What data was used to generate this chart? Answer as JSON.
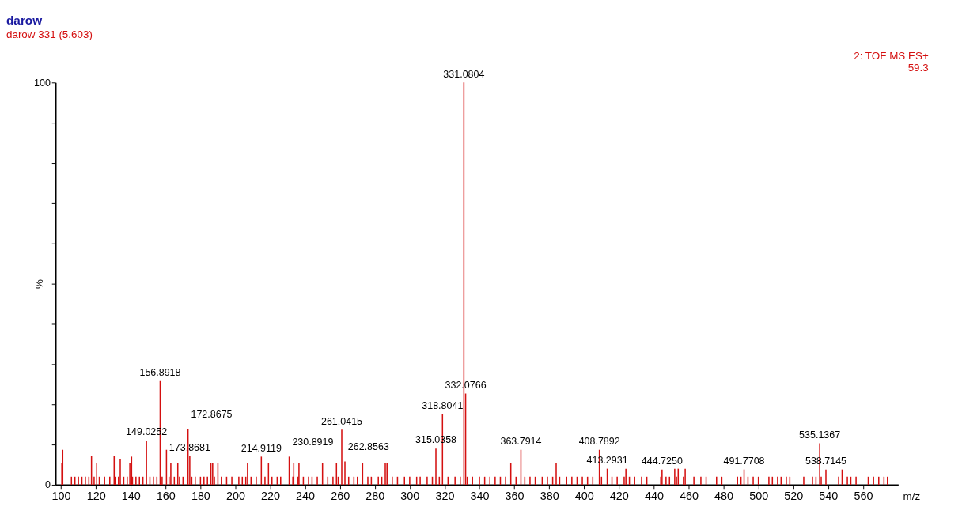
{
  "chart_data": {
    "type": "bar",
    "title": "darow",
    "subtitle": "darow 331 (5.603)",
    "xlabel": "m/z",
    "ylabel": "%",
    "xlim": [
      99,
      578
    ],
    "xticks": [
      100,
      120,
      140,
      160,
      180,
      200,
      220,
      240,
      260,
      280,
      300,
      320,
      340,
      360,
      380,
      400,
      420,
      440,
      460,
      480,
      500,
      520,
      540,
      560
    ],
    "ylim": [
      0,
      100
    ],
    "yticks": [
      0,
      {
        "value": 10,
        "label": null
      },
      {
        "value": 20,
        "label": null
      },
      {
        "value": 30,
        "label": null
      },
      {
        "value": 40,
        "label": null
      },
      {
        "value": 50,
        "label": null
      },
      {
        "value": 60,
        "label": null
      },
      {
        "value": 70,
        "label": null
      },
      {
        "value": 80,
        "label": null
      },
      {
        "value": 90,
        "label": null
      },
      100
    ],
    "grid": false,
    "series": [
      {
        "color": "#d41010",
        "x": [
          100.5,
          101,
          106,
          108,
          110,
          112,
          114,
          116,
          117.5,
          119,
          120.5,
          122,
          125,
          128,
          130.5,
          131,
          133,
          134,
          136,
          138,
          139.5,
          140.5,
          141,
          143,
          145,
          147,
          149.0252,
          151,
          153,
          155,
          156.8918,
          158,
          160.5,
          162,
          163,
          165,
          167,
          168,
          170,
          172.8675,
          173.8681,
          175,
          177,
          180,
          182,
          184,
          186,
          187,
          188,
          190,
          192,
          195,
          198,
          202,
          204,
          206,
          207,
          209,
          212,
          214.9119,
          217,
          219,
          221,
          224,
          226,
          230.8919,
          233,
          233.5,
          236,
          236.5,
          239,
          242,
          244,
          247,
          250,
          253,
          256,
          258,
          259,
          261.0415,
          262.8563,
          265,
          268,
          270,
          273,
          276,
          278,
          282,
          284,
          286,
          287,
          290,
          293,
          297,
          300,
          304,
          306,
          310,
          313,
          315.0358,
          317,
          318.8041,
          322,
          326,
          329,
          331.0804,
          332.0766,
          333,
          336,
          340,
          343,
          346,
          349,
          352,
          355,
          358,
          361,
          363.7914,
          366,
          369,
          372,
          376,
          379,
          382,
          384,
          386,
          390,
          393,
          396,
          399,
          402,
          405,
          408.7892,
          410,
          413.2931,
          416,
          419,
          423,
          424,
          426,
          429,
          433,
          436,
          444,
          444.725,
          447,
          449,
          452,
          453,
          454,
          457,
          458,
          463,
          467,
          470,
          476,
          479,
          488,
          490,
          491.7708,
          494,
          497,
          500,
          506,
          508,
          511,
          513,
          516,
          518,
          526,
          531,
          533,
          535.1367,
          536,
          538.7145,
          546,
          548,
          551,
          553,
          556,
          563,
          566,
          569,
          572,
          574
        ],
        "values": [
          5.4,
          8.7,
          2,
          2,
          2,
          2,
          2,
          2,
          7.2,
          2,
          5.4,
          2,
          2,
          2,
          7.2,
          2,
          2,
          6.5,
          2,
          2,
          5.4,
          7.0,
          2,
          2,
          2,
          2,
          11.0,
          2,
          2,
          2,
          25.8,
          2,
          8.7,
          2,
          5.4,
          2,
          5.4,
          2,
          2,
          13.9,
          7.2,
          2,
          2,
          2,
          2,
          2,
          5.4,
          5.4,
          2,
          5.4,
          2,
          2,
          2,
          2,
          2,
          2,
          5.4,
          2,
          2,
          7.0,
          2,
          5.4,
          2,
          2,
          2,
          7.0,
          2,
          5.4,
          2,
          5.4,
          2,
          2,
          2,
          2,
          5.4,
          2,
          2,
          5.4,
          2,
          13.7,
          5.8,
          2,
          2,
          2,
          5.4,
          2,
          2,
          2,
          2,
          5.4,
          5.4,
          2,
          2,
          2,
          2,
          2,
          2,
          2,
          2,
          9.0,
          2,
          17.5,
          2,
          2,
          2,
          100,
          22.7,
          2,
          2,
          2,
          2,
          2,
          2,
          2,
          2,
          5.4,
          2,
          8.7,
          2,
          2,
          2,
          2,
          2,
          2,
          5.4,
          2,
          2,
          2,
          2,
          2,
          2,
          2,
          8.7,
          2,
          4.0,
          2,
          2,
          2,
          4.0,
          2,
          2,
          2,
          2,
          2,
          3.8,
          2,
          2,
          4.0,
          2,
          4.0,
          2,
          4.0,
          2,
          2,
          2,
          2,
          2,
          2,
          2,
          3.8,
          2,
          2,
          2,
          2,
          2,
          2,
          2,
          2,
          2,
          2,
          2,
          2,
          10.3,
          2,
          3.8,
          2,
          3.8,
          2,
          2,
          2,
          2,
          2,
          2,
          2,
          2
        ]
      }
    ],
    "annotations": [
      {
        "text": "331.0804",
        "x": 331.0804,
        "y": 100
      },
      {
        "text": "156.8918",
        "x": 156.8918,
        "y": 25.8
      },
      {
        "text": "332.0766",
        "x": 332.0766,
        "y": 22.7
      },
      {
        "text": "318.8041",
        "x": 318.8041,
        "y": 17.5
      },
      {
        "text": "315.0358",
        "x": 315.0358,
        "y": 9.0
      },
      {
        "text": "261.0415",
        "x": 261.0415,
        "y": 13.7
      },
      {
        "text": "262.8563",
        "x": 262.8563,
        "y": 5.8
      },
      {
        "text": "363.7914",
        "x": 363.7914,
        "y": 8.7
      },
      {
        "text": "408.7892",
        "x": 408.7892,
        "y": 8.7
      },
      {
        "text": "413.2931",
        "x": 413.2931,
        "y": 4.0
      },
      {
        "text": "149.0252",
        "x": 149.0252,
        "y": 11.0
      },
      {
        "text": "172.8675",
        "x": 172.8675,
        "y": 13.9
      },
      {
        "text": "173.8681",
        "x": 173.8681,
        "y": 7.2
      },
      {
        "text": "214.9119",
        "x": 214.9119,
        "y": 7.0
      },
      {
        "text": "230.8919",
        "x": 230.8919,
        "y": 7.0
      },
      {
        "text": "444.7250",
        "x": 444.725,
        "y": 3.8
      },
      {
        "text": "491.7708",
        "x": 491.7708,
        "y": 3.8
      },
      {
        "text": "535.1367",
        "x": 535.1367,
        "y": 10.3
      },
      {
        "text": "538.7145",
        "x": 538.7145,
        "y": 3.8
      },
      "2: TOF MS ES+",
      "59.3"
    ]
  }
}
